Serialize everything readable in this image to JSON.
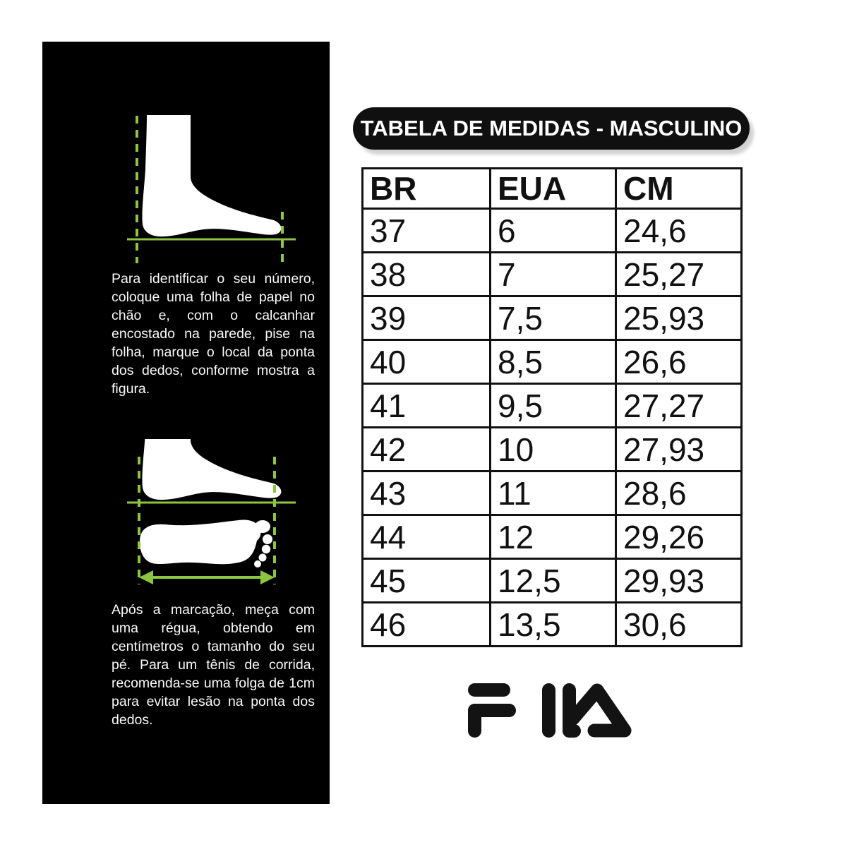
{
  "colors": {
    "accent_green": "#8CC63F",
    "panel_background": "#000000",
    "panel_text": "#fafafa",
    "title_background": "#101010",
    "table_border": "#111111",
    "logo_color": "#131313"
  },
  "left_panel": {
    "illustration1": "foot-side-view-with-heel-and-toe-guide-lines",
    "illustration2": "foot-above-sole-print-with-length-arrow",
    "paragraph1": "Para identificar o seu número, coloque uma folha de papel no chão e, com o calcanhar encostado na parede, pise na folha, marque o local da ponta dos dedos, conforme mostra a figura.",
    "paragraph2": "Após a marcação, meça com uma régua, obtendo em centímetros o tamanho do seu pé. Para um tênis de corrida, recomenda-se uma folga de 1cm para evitar lesão na ponta dos dedos."
  },
  "chart_data": {
    "type": "table",
    "title": "TABELA DE MEDIDAS - MASCULINO",
    "columns": [
      "BR",
      "EUA",
      "CM"
    ],
    "rows": [
      [
        "37",
        "6",
        "24,6"
      ],
      [
        "38",
        "7",
        "25,27"
      ],
      [
        "39",
        "7,5",
        "25,93"
      ],
      [
        "40",
        "8,5",
        "26,6"
      ],
      [
        "41",
        "9,5",
        "27,27"
      ],
      [
        "42",
        "10",
        "27,93"
      ],
      [
        "43",
        "11",
        "28,6"
      ],
      [
        "44",
        "12",
        "29,26"
      ],
      [
        "45",
        "12,5",
        "29,93"
      ],
      [
        "46",
        "13,5",
        "30,6"
      ]
    ],
    "legend": "none",
    "grid": "full table borders"
  },
  "brand": {
    "logo_text": "FILA"
  }
}
